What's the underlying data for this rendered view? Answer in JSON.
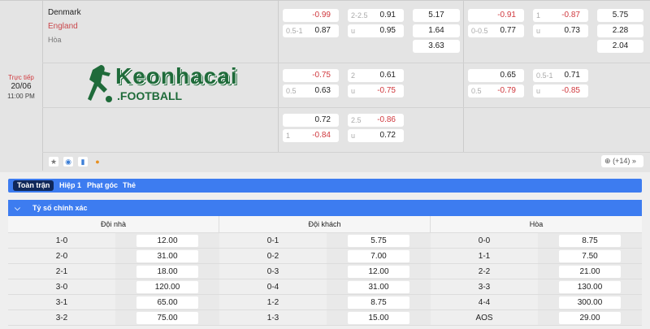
{
  "match": {
    "status": "Trực tiếp",
    "date": "20/06",
    "time": "11:00 PM",
    "home": "Denmark",
    "away": "England",
    "draw": "Hòa"
  },
  "logo": {
    "text": "Keonhacai",
    "sub": ".FOOTBALL"
  },
  "odds": {
    "r1": {
      "ah_h": "",
      "ah_hv": "-0.99",
      "ah_a": "0.5-1",
      "ah_av": "0.87",
      "ou_h": "2-2.5",
      "ou_hv": "0.91",
      "ou_a": "u",
      "ou_av": "0.95",
      "x1": "5.17",
      "x2": "1.64",
      "x3": "3.63",
      "fh_ah_h": "",
      "fh_ah_hv": "-0.91",
      "fh_ah_a": "0-0.5",
      "fh_ah_av": "0.77",
      "fh_ou_h": "1",
      "fh_ou_hv": "-0.87",
      "fh_ou_a": "u",
      "fh_ou_av": "0.73",
      "fx1": "5.75",
      "fx2": "2.28",
      "fx3": "2.04"
    },
    "r2": {
      "ah_hv": "-0.75",
      "ah_a": "0.5",
      "ah_av": "0.63",
      "ou_h": "2",
      "ou_hv": "0.61",
      "ou_a": "u",
      "ou_av": "-0.75",
      "fh_ah_hv": "0.65",
      "fh_ah_a": "0.5",
      "fh_ah_av": "-0.79",
      "fh_ou_h": "0.5-1",
      "fh_ou_hv": "0.71",
      "fh_ou_a": "u",
      "fh_ou_av": "-0.85"
    },
    "r3": {
      "ah_hv": "0.72",
      "ah_a": "1",
      "ah_av": "-0.84",
      "ou_h": "2.5",
      "ou_hv": "-0.86",
      "ou_a": "u",
      "ou_av": "0.72"
    }
  },
  "more": {
    "label": "(+14)"
  },
  "tabs": [
    "Toàn trận",
    "Hiệp 1",
    "Phạt góc",
    "Thẻ"
  ],
  "section": {
    "title": "Tỷ số chính xác"
  },
  "table": {
    "headers": [
      "Đội nhà",
      "Đội khách",
      "Hòa"
    ],
    "home": [
      [
        "1-0",
        "12.00"
      ],
      [
        "2-0",
        "31.00"
      ],
      [
        "2-1",
        "18.00"
      ],
      [
        "3-0",
        "120.00"
      ],
      [
        "3-1",
        "65.00"
      ],
      [
        "3-2",
        "75.00"
      ]
    ],
    "away": [
      [
        "0-1",
        "5.75"
      ],
      [
        "0-2",
        "7.00"
      ],
      [
        "0-3",
        "12.00"
      ],
      [
        "0-4",
        "31.00"
      ],
      [
        "1-2",
        "8.75"
      ],
      [
        "1-3",
        "15.00"
      ]
    ],
    "draw": [
      [
        "0-0",
        "8.75"
      ],
      [
        "1-1",
        "7.50"
      ],
      [
        "2-2",
        "21.00"
      ],
      [
        "3-3",
        "130.00"
      ],
      [
        "4-4",
        "300.00"
      ],
      [
        "AOS",
        "29.00"
      ]
    ]
  },
  "colors": {
    "accent": "#3d7cf0",
    "negative": "#d0393e",
    "active_tab": "#10285a",
    "logo": "#1f6b3a"
  }
}
